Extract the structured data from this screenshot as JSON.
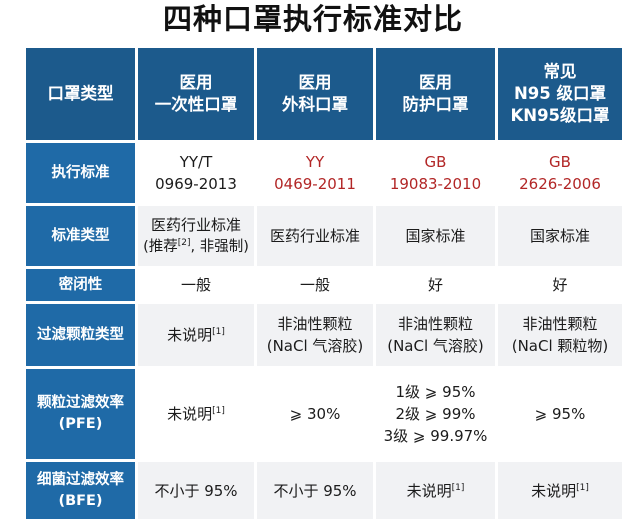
{
  "title": "四种口罩执行标准对比",
  "columns": {
    "corner": "口罩类型",
    "medical_disposable": [
      "医用",
      "一次性口罩"
    ],
    "medical_surgical": [
      "医用",
      "外科口罩"
    ],
    "medical_protective": [
      "医用",
      "防护口罩"
    ],
    "common_n95": [
      "常见",
      "N95 级口罩",
      "KN95级口罩"
    ]
  },
  "rows": {
    "standard": {
      "label": "执行标准",
      "disposable": [
        "YY/T",
        "0969-2013"
      ],
      "surgical": [
        "YY",
        "0469-2011"
      ],
      "protective": [
        "GB",
        "19083-2010"
      ],
      "n95": [
        "GB",
        "2626-2006"
      ]
    },
    "standard_type": {
      "label": "标准类型",
      "disposable_line1": "医药行业标准",
      "disposable_line2_a": "(推荐",
      "disposable_line2_sup": "[2]",
      "disposable_line2_b": ", 非强制)",
      "surgical": "医药行业标准",
      "protective": "国家标准",
      "n95": "国家标准"
    },
    "seal": {
      "label": "密闭性",
      "disposable": "一般",
      "surgical": "一般",
      "protective": "好",
      "n95": "好"
    },
    "filter_particle_type": {
      "label": "过滤颗粒类型",
      "disposable_text": "未说明",
      "disposable_sup": "[1]",
      "surgical": [
        "非油性颗粒",
        "(NaCl 气溶胶)"
      ],
      "protective": [
        "非油性颗粒",
        "(NaCl 气溶胶)"
      ],
      "n95": [
        "非油性颗粒",
        "(NaCl 颗粒物)"
      ]
    },
    "pfe": {
      "label": [
        "颗粒过滤效率",
        "(PFE)"
      ],
      "disposable_text": "未说明",
      "disposable_sup": "[1]",
      "surgical": "⩾ 30%",
      "protective": [
        "1级 ⩾ 95%",
        "2级 ⩾ 99%",
        "3级 ⩾ 99.97%"
      ],
      "n95": "⩾ 95%"
    },
    "bfe": {
      "label": [
        "细菌过滤效率",
        "(BFE)"
      ],
      "disposable": "不小于 95%",
      "surgical": "不小于 95%",
      "protective_text": "未说明",
      "protective_sup": "[1]",
      "n95_text": "未说明",
      "n95_sup": "[1]"
    }
  },
  "colors": {
    "header_bg": "#1c5a8c",
    "row_header_bg": "#1f6aa7",
    "accent_red": "#b22626",
    "stripe": "#f1f2f4"
  }
}
